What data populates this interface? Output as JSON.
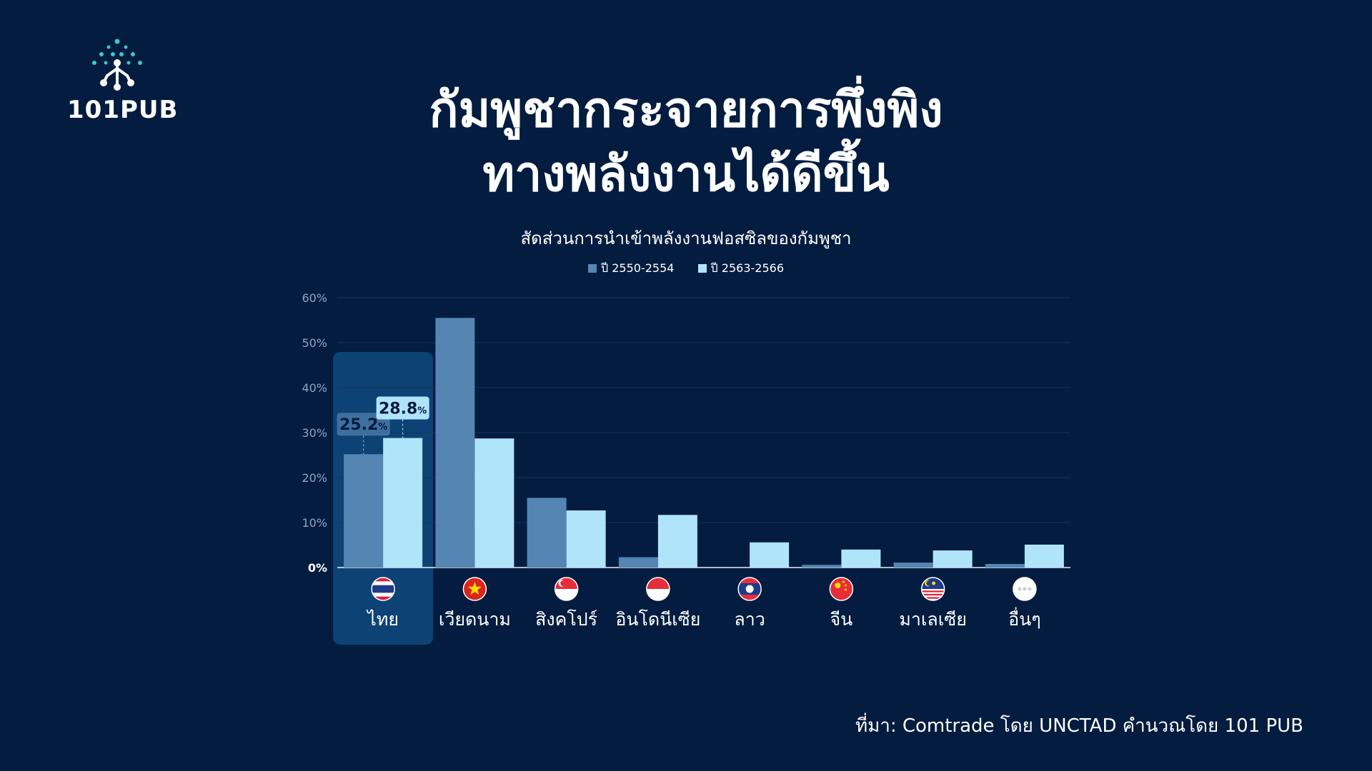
{
  "logo": {
    "text": "101PUB"
  },
  "title_lines": [
    "กัมพูชากระจายการพึ่งพิง",
    "ทางพลังงานได้ดีขึ้น"
  ],
  "colors": {
    "background": "#031c40",
    "series1": "#5585b2",
    "series2": "#b0e4fb",
    "highlight": "#0d4374",
    "accent": "#3ec6c6"
  },
  "chart_data": {
    "type": "bar",
    "title": "สัดส่วนการนำเข้าพลังงานฟอสซิลของกัมพูชา",
    "categories": [
      "ไทย",
      "เวียดนาม",
      "สิงคโปร์",
      "อินโดนีเซีย",
      "ลาว",
      "จีน",
      "มาเลเซีย",
      "อื่นๆ"
    ],
    "flag_icons": [
      "thailand-flag-icon",
      "vietnam-flag-icon",
      "singapore-flag-icon",
      "indonesia-flag-icon",
      "laos-flag-icon",
      "china-flag-icon",
      "malaysia-flag-icon",
      "others-icon"
    ],
    "series": [
      {
        "name": "ปี 2550-2554",
        "values": [
          25.2,
          55.5,
          15.5,
          2.3,
          0,
          0.6,
          1.1,
          0.8
        ]
      },
      {
        "name": "ปี 2563-2566",
        "values": [
          28.8,
          28.7,
          12.7,
          11.7,
          5.6,
          4.0,
          3.8,
          5.1
        ]
      }
    ],
    "ylim": [
      0,
      60
    ],
    "yticks": [
      "0%",
      "10%",
      "20%",
      "30%",
      "40%",
      "50%",
      "60%"
    ],
    "grid": true,
    "legend_position": "top-center",
    "highlight_category": "ไทย",
    "annotations": [
      {
        "series": 0,
        "category": 0,
        "number": "25.2",
        "unit": "%"
      },
      {
        "series": 1,
        "category": 0,
        "number": "28.8",
        "unit": "%"
      }
    ]
  },
  "source": "ที่มา: Comtrade โดย UNCTAD คำนวณโดย 101 PUB"
}
